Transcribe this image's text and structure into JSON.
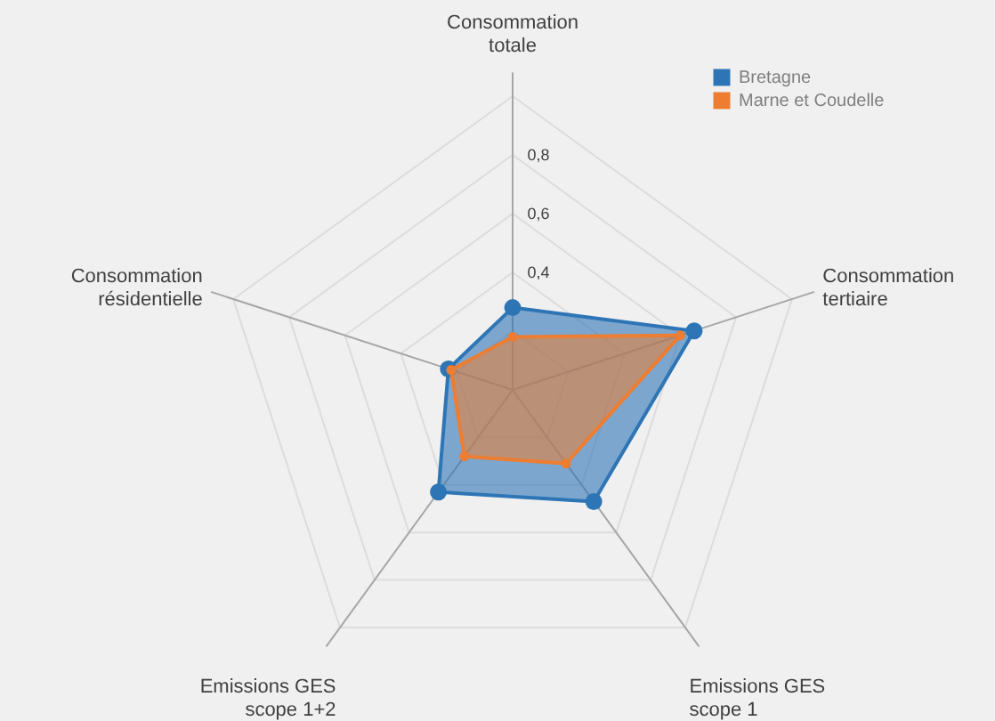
{
  "chart_data": {
    "type": "radar",
    "categories": [
      "Consommation totale",
      "Consommation tertiaire",
      "Emissions GES scope 1",
      "Emissions GES scope 1+2",
      "Consommation résidentielle"
    ],
    "series": [
      {
        "name": "Bretagne",
        "color": "#2e75b6",
        "values": [
          0.28,
          0.65,
          0.47,
          0.43,
          0.23
        ]
      },
      {
        "name": "Marne et Coudelle",
        "color": "#ed7d31",
        "values": [
          0.18,
          0.6,
          0.31,
          0.28,
          0.22
        ]
      }
    ],
    "ylim": [
      0,
      1
    ],
    "yticks": [
      {
        "value": 0.4,
        "label": "0,4"
      },
      {
        "value": 0.6,
        "label": "0,6"
      },
      {
        "value": 0.8,
        "label": "0,8"
      }
    ],
    "grid": true,
    "legend": "top right",
    "marker": "circle"
  }
}
